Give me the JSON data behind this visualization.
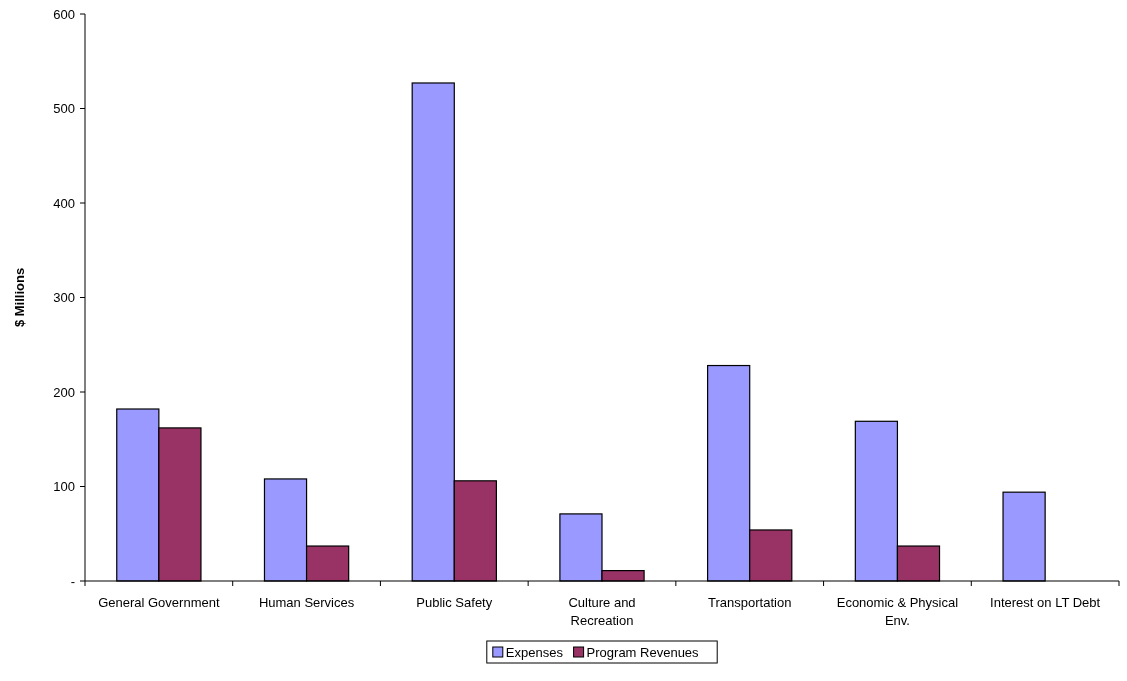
{
  "chart_data": {
    "type": "bar",
    "ylabel": "$ Millions",
    "categories": [
      "General Government",
      "Human Services",
      "Public Safety",
      "Culture and Recreation",
      "Transportation",
      "Economic & Physical Env.",
      "Interest on LT Debt"
    ],
    "series": [
      {
        "name": "Expenses",
        "color": "#9999ff",
        "values": [
          182,
          108,
          527,
          71,
          228,
          169,
          94
        ]
      },
      {
        "name": "Program Revenues",
        "color": "#993366",
        "values": [
          162,
          37,
          106,
          11,
          54,
          37,
          null
        ]
      }
    ],
    "ylim": [
      0,
      600
    ],
    "yticks": [
      {
        "value": 0,
        "label": "-"
      },
      100,
      200,
      300,
      400,
      500,
      600
    ],
    "grid": false,
    "legend": "bottom"
  }
}
